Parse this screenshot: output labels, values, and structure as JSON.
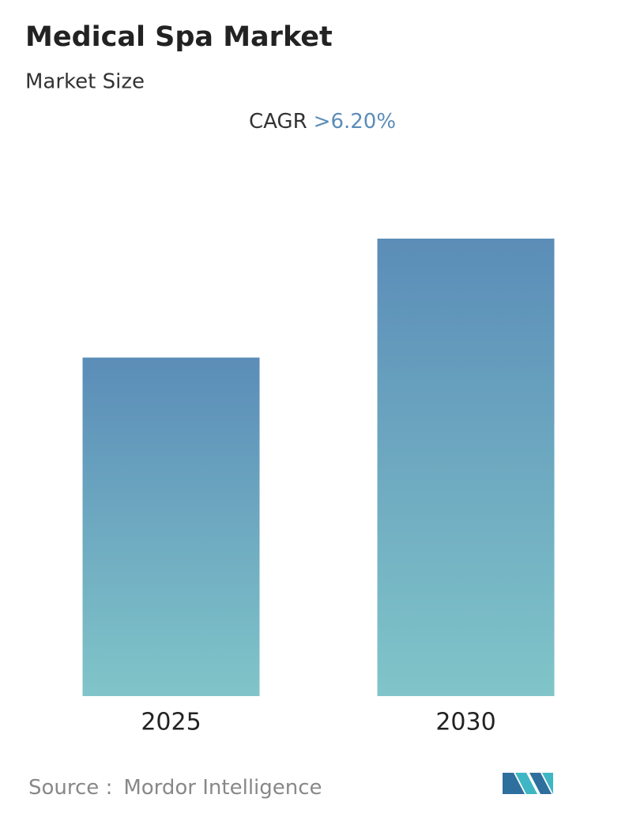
{
  "chart_data": {
    "type": "bar",
    "title": "Medical Spa Market",
    "subtitle": "Market Size",
    "cagr_label": "CAGR",
    "cagr_value": ">6.20%",
    "categories": [
      "2025",
      "2030"
    ],
    "values": [
      74,
      100
    ],
    "color_top": "#5b8db8",
    "color_bottom": "#80c5c9",
    "ylim": [
      0,
      100
    ],
    "source_label": "Source :",
    "source": "Mordor Intelligence"
  }
}
